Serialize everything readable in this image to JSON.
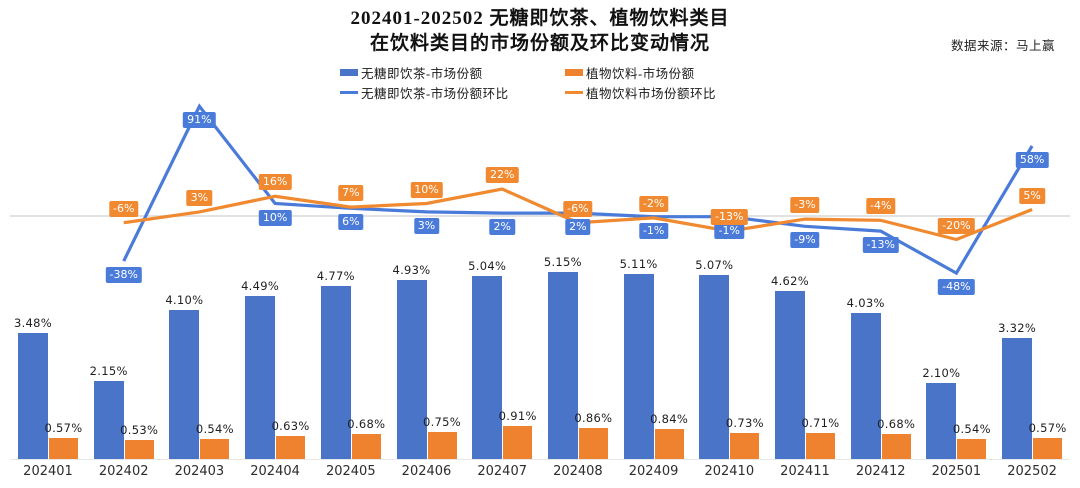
{
  "title": {
    "line1": "202401-202502 无糖即饮茶、植物饮料类目",
    "line2": "在饮料类目的市场份额及环比变动情况"
  },
  "source": {
    "text": "数据来源：马上赢"
  },
  "legend": {
    "items": [
      {
        "label": "无糖即饮茶-市场份额",
        "swatch": "bar",
        "color": "#4a74c8"
      },
      {
        "label": "植物饮料-市场份额",
        "swatch": "bar",
        "color": "#ee822f"
      },
      {
        "label": "无糖即饮茶-市场份额环比",
        "swatch": "line",
        "color": "#4a7bd9"
      },
      {
        "label": "植物饮料市场份额环比",
        "swatch": "line",
        "color": "#f0892f"
      }
    ]
  },
  "colors": {
    "bar_blue": "#4a74c8",
    "bar_orange": "#ee822f",
    "line_blue": "#4a7bd9",
    "line_orange": "#f0892f",
    "gridline": "#e2e2e2",
    "label_text": "#1f1f1f"
  },
  "chart_data": {
    "type": "combo-bar-line",
    "title": "202401-202502 无糖即饮茶、植物饮料类目在饮料类目的市场份额及环比变动情况",
    "xlabel": "",
    "ylabel": "",
    "axes_visible": false,
    "grid": "single zero baseline for MoM line axis",
    "legend_position": "top-center",
    "categories": [
      "202401",
      "202402",
      "202403",
      "202404",
      "202405",
      "202406",
      "202407",
      "202408",
      "202409",
      "202410",
      "202411",
      "202412",
      "202501",
      "202502"
    ],
    "series": [
      {
        "id": "tea-share",
        "name": "无糖即饮茶-市场份额",
        "type": "bar",
        "color": "#4a74c8",
        "unit": "%",
        "values": [
          3.48,
          2.15,
          4.1,
          4.49,
          4.77,
          4.93,
          5.04,
          5.15,
          5.11,
          5.07,
          4.62,
          4.03,
          2.1,
          3.32
        ],
        "labels": [
          "3.48%",
          "2.15%",
          "4.10%",
          "4.49%",
          "4.77%",
          "4.93%",
          "5.04%",
          "5.15%",
          "5.11%",
          "5.07%",
          "4.62%",
          "4.03%",
          "2.10%",
          "3.32%"
        ]
      },
      {
        "id": "plant-share",
        "name": "植物饮料-市场份额",
        "type": "bar",
        "color": "#ee822f",
        "unit": "%",
        "values": [
          0.57,
          0.53,
          0.54,
          0.63,
          0.68,
          0.75,
          0.91,
          0.86,
          0.84,
          0.73,
          0.71,
          0.68,
          0.54,
          0.57
        ],
        "labels": [
          "0.57%",
          "0.53%",
          "0.54%",
          "0.63%",
          "0.68%",
          "0.75%",
          "0.91%",
          "0.86%",
          "0.84%",
          "0.73%",
          "0.71%",
          "0.68%",
          "0.54%",
          "0.57%"
        ]
      },
      {
        "id": "tea-mom",
        "name": "无糖即饮茶-市场份额环比",
        "type": "line",
        "color": "#4a7bd9",
        "unit": "%",
        "label_side": "below",
        "values": [
          null,
          -38,
          91,
          10,
          6,
          3,
          2,
          2,
          -1,
          -1,
          -9,
          -13,
          -48,
          58
        ],
        "labels": [
          null,
          "-38%",
          "91%",
          "10%",
          "6%",
          "3%",
          "2%",
          "2%",
          "-1%",
          "-1%",
          "-9%",
          "-13%",
          "-48%",
          "58%"
        ]
      },
      {
        "id": "plant-mom",
        "name": "植物饮料市场份额环比",
        "type": "line",
        "color": "#f0892f",
        "unit": "%",
        "label_side": "above",
        "values": [
          null,
          -6,
          3,
          16,
          7,
          10,
          22,
          -6,
          -2,
          -13,
          -3,
          -4,
          -20,
          5
        ],
        "labels": [
          null,
          "-6%",
          "3%",
          "16%",
          "7%",
          "10%",
          "22%",
          "-6%",
          "-2%",
          "-13%",
          "-3%",
          "-4%",
          "-20%",
          "5%"
        ]
      }
    ]
  }
}
